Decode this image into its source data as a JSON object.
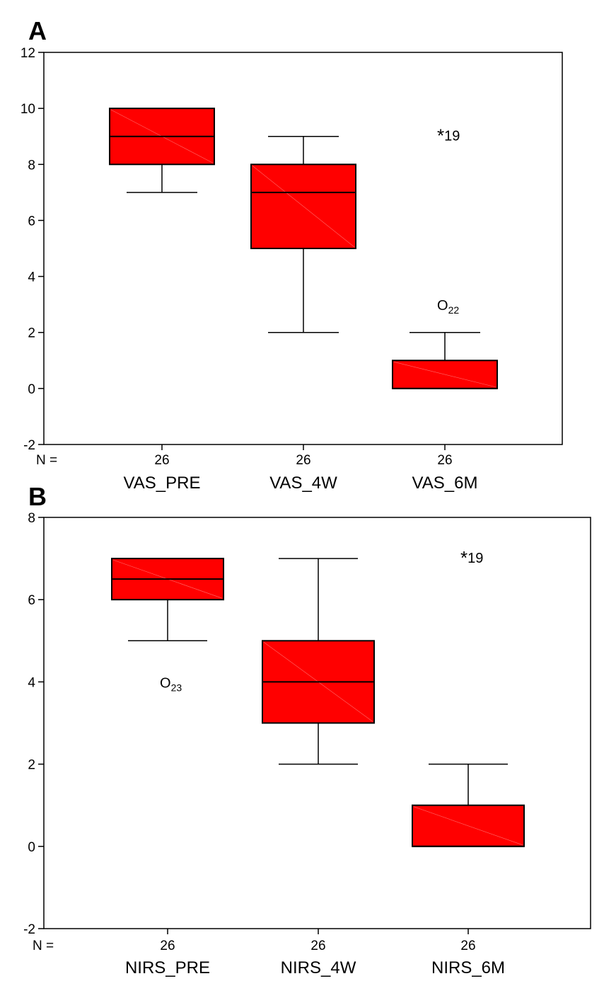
{
  "chart_data": [
    {
      "type": "boxplot",
      "panel_label": "A",
      "ylim": [
        -2,
        12
      ],
      "yticks": [
        -2,
        0,
        2,
        4,
        6,
        8,
        10,
        12
      ],
      "n_prefix": "N =",
      "categories": [
        "VAS_PRE",
        "VAS_4W",
        "VAS_6M"
      ],
      "n": [
        "26",
        "26",
        "26"
      ],
      "boxes": [
        {
          "category": "VAS_PRE",
          "whisker_low": 7,
          "q1": 8,
          "median": 9,
          "q3": 10,
          "whisker_high": 10
        },
        {
          "category": "VAS_4W",
          "whisker_low": 2,
          "q1": 5,
          "median": 7,
          "q3": 8,
          "whisker_high": 9
        },
        {
          "category": "VAS_6M",
          "whisker_low": 0,
          "q1": 0,
          "median": 0,
          "q3": 1,
          "whisker_high": 2
        }
      ],
      "outliers": [
        {
          "category": "VAS_6M",
          "value": 9,
          "marker": "*",
          "label": "19",
          "subscript": false
        },
        {
          "category": "VAS_6M",
          "value": 3,
          "marker": "O",
          "label": "22",
          "subscript": true
        }
      ],
      "box_color": "#ff0000",
      "grid": false
    },
    {
      "type": "boxplot",
      "panel_label": "B",
      "ylim": [
        -2,
        8
      ],
      "yticks": [
        -2,
        0,
        2,
        4,
        6,
        8
      ],
      "n_prefix": "N =",
      "categories": [
        "NIRS_PRE",
        "NIRS_4W",
        "NIRS_6M"
      ],
      "n": [
        "26",
        "26",
        "26"
      ],
      "boxes": [
        {
          "category": "NIRS_PRE",
          "whisker_low": 5,
          "q1": 6,
          "median": 6.5,
          "q3": 7,
          "whisker_high": 7
        },
        {
          "category": "NIRS_4W",
          "whisker_low": 2,
          "q1": 3,
          "median": 4,
          "q3": 5,
          "whisker_high": 7
        },
        {
          "category": "NIRS_6M",
          "whisker_low": 0,
          "q1": 0,
          "median": 0,
          "q3": 1,
          "whisker_high": 2
        }
      ],
      "outliers": [
        {
          "category": "NIRS_6M",
          "value": 7,
          "marker": "*",
          "label": "19",
          "subscript": false
        },
        {
          "category": "NIRS_PRE",
          "value": 4,
          "marker": "O",
          "label": "23",
          "subscript": true
        }
      ],
      "box_color": "#ff0000",
      "grid": false
    }
  ]
}
